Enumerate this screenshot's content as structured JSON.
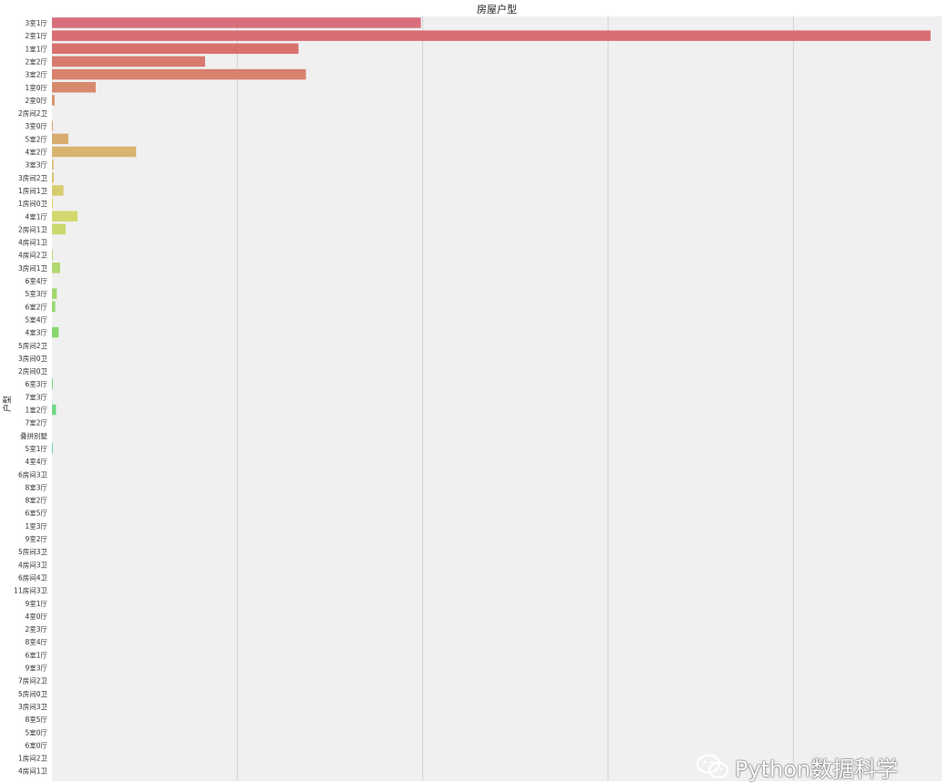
{
  "chart_data": {
    "type": "bar",
    "orientation": "horizontal",
    "title": "房屋户型",
    "xlabel": "",
    "ylabel": "户型",
    "xlim": [
      0,
      2400
    ],
    "grid": true,
    "legend": "none",
    "categories": [
      "3室1厅",
      "2室1厅",
      "1室1厅",
      "2室2厅",
      "3室2厅",
      "1室0厅",
      "2室0厅",
      "2房间2卫",
      "3室0厅",
      "5室2厅",
      "4室2厅",
      "3室3厅",
      "3房间2卫",
      "1房间1卫",
      "1房间0卫",
      "4室1厅",
      "2房间1卫",
      "4房间1卫",
      "4房间2卫",
      "3房间1卫",
      "6室4厅",
      "5室3厅",
      "6室2厅",
      "5室4厅",
      "4室3厅",
      "5房间2卫",
      "3房间0卫",
      "2房间0卫",
      "6室3厅",
      "7室3厅",
      "1室2厅",
      "7室2厅",
      "叠拼别墅",
      "5室1厅",
      "4室4厅",
      "6房间3卫",
      "8室3厅",
      "8室2厅",
      "6室5厅",
      "1室3厅",
      "9室2厅",
      "5房间3卫",
      "4房间3卫",
      "6房间4卫",
      "11房间3卫",
      "9室1厅",
      "4室0厅",
      "2室3厅",
      "8室4厅",
      "6室1厅",
      "9室3厅",
      "7房间2卫",
      "5房间0卫",
      "3房间3卫",
      "8室5厅",
      "5室0厅",
      "6室0厅",
      "1房间2卫",
      "4房间1卫"
    ],
    "values": [
      995,
      2370,
      665,
      413,
      685,
      118,
      7,
      0,
      2,
      44,
      227,
      4,
      5,
      31,
      1,
      69,
      37,
      0,
      1,
      22,
      0,
      13,
      9,
      0,
      18,
      0,
      0,
      0,
      2,
      0,
      11,
      0,
      0,
      1,
      0,
      0,
      0,
      0,
      0,
      0,
      0,
      0,
      0,
      0,
      0,
      0,
      0,
      0,
      0,
      0,
      0,
      0,
      0,
      0,
      0,
      0,
      0,
      0,
      0
    ]
  },
  "watermark": {
    "icon": "wechat-icon",
    "text": "Python数据科学"
  }
}
